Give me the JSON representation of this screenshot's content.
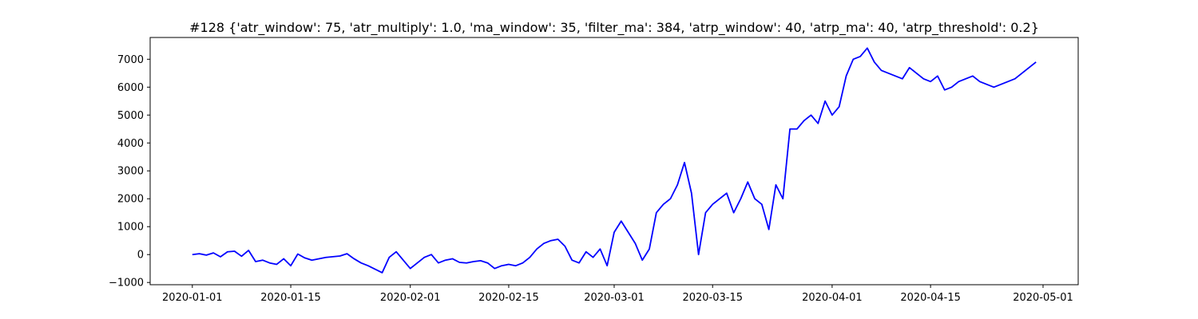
{
  "chart_data": {
    "type": "line",
    "title": "#128 {'atr_window': 75, 'atr_multiply': 1.0, 'ma_window': 35, 'filter_ma': 384, 'atrp_window': 40, 'atrp_ma': 40, 'atrp_threshold': 0.2}",
    "xlabel": "",
    "ylabel": "",
    "grid": false,
    "x_ticks": [
      "2020-01-01",
      "2020-01-15",
      "2020-02-01",
      "2020-02-15",
      "2020-03-01",
      "2020-03-15",
      "2020-04-01",
      "2020-04-15",
      "2020-05-01"
    ],
    "y_ticks": [
      -1000,
      0,
      1000,
      2000,
      3000,
      4000,
      5000,
      6000,
      7000
    ],
    "xlim": [
      "2019-12-26",
      "2020-05-06"
    ],
    "ylim": [
      -1080,
      7780
    ],
    "series": [
      {
        "name": "",
        "color": "#0000ff",
        "x": [
          "2020-01-01",
          "2020-01-02",
          "2020-01-03",
          "2020-01-04",
          "2020-01-05",
          "2020-01-06",
          "2020-01-07",
          "2020-01-08",
          "2020-01-09",
          "2020-01-10",
          "2020-01-11",
          "2020-01-12",
          "2020-01-13",
          "2020-01-14",
          "2020-01-15",
          "2020-01-16",
          "2020-01-17",
          "2020-01-18",
          "2020-01-20",
          "2020-01-22",
          "2020-01-23",
          "2020-01-24",
          "2020-01-25",
          "2020-01-26",
          "2020-01-28",
          "2020-01-29",
          "2020-01-30",
          "2020-01-31",
          "2020-02-01",
          "2020-02-02",
          "2020-02-03",
          "2020-02-04",
          "2020-02-05",
          "2020-02-06",
          "2020-02-07",
          "2020-02-08",
          "2020-02-09",
          "2020-02-10",
          "2020-02-11",
          "2020-02-12",
          "2020-02-13",
          "2020-02-14",
          "2020-02-15",
          "2020-02-16",
          "2020-02-17",
          "2020-02-18",
          "2020-02-19",
          "2020-02-20",
          "2020-02-21",
          "2020-02-22",
          "2020-02-23",
          "2020-02-24",
          "2020-02-25",
          "2020-02-26",
          "2020-02-27",
          "2020-02-28",
          "2020-02-29",
          "2020-03-01",
          "2020-03-02",
          "2020-03-03",
          "2020-03-04",
          "2020-03-05",
          "2020-03-06",
          "2020-03-07",
          "2020-03-08",
          "2020-03-09",
          "2020-03-10",
          "2020-03-11",
          "2020-03-12",
          "2020-03-13",
          "2020-03-14",
          "2020-03-15",
          "2020-03-16",
          "2020-03-17",
          "2020-03-18",
          "2020-03-19",
          "2020-03-20",
          "2020-03-21",
          "2020-03-22",
          "2020-03-23",
          "2020-03-24",
          "2020-03-25",
          "2020-03-26",
          "2020-03-27",
          "2020-03-28",
          "2020-03-29",
          "2020-03-30",
          "2020-03-31",
          "2020-04-01",
          "2020-04-02",
          "2020-04-03",
          "2020-04-04",
          "2020-04-05",
          "2020-04-06",
          "2020-04-07",
          "2020-04-08",
          "2020-04-09",
          "2020-04-10",
          "2020-04-11",
          "2020-04-12",
          "2020-04-13",
          "2020-04-14",
          "2020-04-15",
          "2020-04-16",
          "2020-04-17",
          "2020-04-18",
          "2020-04-19",
          "2020-04-20",
          "2020-04-21",
          "2020-04-22",
          "2020-04-23",
          "2020-04-24",
          "2020-04-25",
          "2020-04-26",
          "2020-04-27",
          "2020-04-28",
          "2020-04-29",
          "2020-04-30"
        ],
        "values": [
          0,
          30,
          -20,
          60,
          -80,
          100,
          120,
          -60,
          150,
          -250,
          -200,
          -300,
          -350,
          -150,
          -400,
          20,
          -120,
          -200,
          -100,
          -50,
          30,
          -150,
          -300,
          -400,
          -650,
          -100,
          100,
          -200,
          -500,
          -300,
          -100,
          0,
          -300,
          -200,
          -150,
          -280,
          -300,
          -250,
          -220,
          -300,
          -500,
          -400,
          -350,
          -400,
          -300,
          -100,
          200,
          400,
          500,
          550,
          300,
          -200,
          -300,
          100,
          -100,
          200,
          -400,
          800,
          1200,
          800,
          400,
          -200,
          200,
          1500,
          1800,
          2000,
          2500,
          3300,
          2200,
          0,
          1500,
          1800,
          2000,
          2200,
          1500,
          2000,
          2600,
          2000,
          1800,
          900,
          2500,
          2000,
          4500,
          4500,
          4800,
          5000,
          4700,
          5500,
          5000,
          5300,
          6400,
          7000,
          7100,
          7400,
          6900,
          6600,
          6500,
          6400,
          6300,
          6700,
          6500,
          6300,
          6200,
          6400,
          5900,
          6000,
          6200,
          6300,
          6400,
          6200,
          6100,
          6000,
          6100,
          6200,
          6300,
          6500,
          6700,
          6900
        ]
      }
    ]
  }
}
